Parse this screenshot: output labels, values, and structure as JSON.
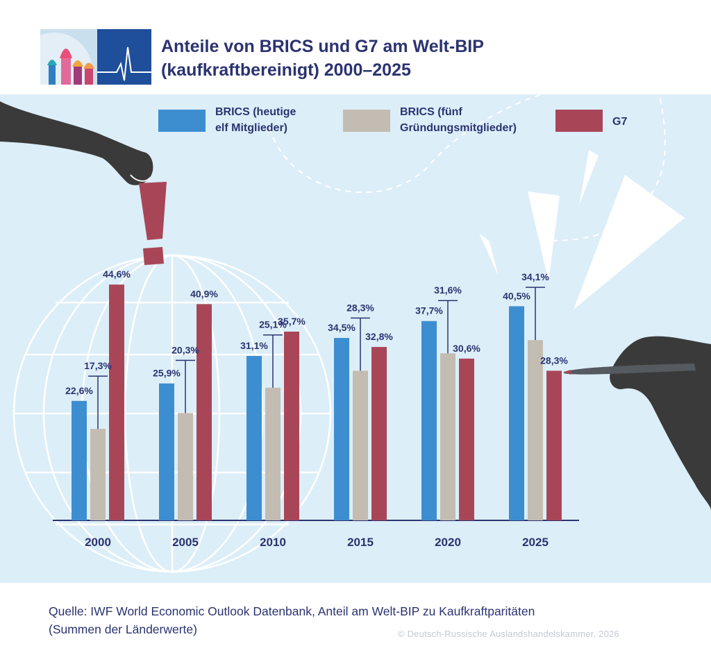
{
  "header": {
    "title_line1": "Anteile von BRICS und G7 am Welt-BIP",
    "title_line2": "(kaufkraftbereinigt) 2000–2025",
    "logo_icon": "kremlin-domes-heartbeat-logo"
  },
  "decorations": {
    "globe_icon": "wireframe-globe-icon",
    "exclamation_icon": "exclamation-mark-icon",
    "left_hand_icon": "halftone-hand-icon",
    "right_hand_icon": "halftone-hand-with-pen-icon"
  },
  "colors": {
    "brics_current": "#3d8ed0",
    "brics_founding": "#c3bcb2",
    "g7": "#a84658",
    "panel": "#dceef8",
    "text": "#2b3370"
  },
  "chart_data": {
    "type": "bar",
    "title": "Anteile von BRICS und G7 am Welt-BIP (kaufkraftbereinigt) 2000–2025",
    "categories": [
      "2000",
      "2005",
      "2010",
      "2015",
      "2020",
      "2025"
    ],
    "unit": "%",
    "series": [
      {
        "name": "BRICS (heutige elf Mitglieder)",
        "color": "#3d8ed0",
        "values": [
          22.6,
          25.9,
          31.1,
          34.5,
          37.7,
          40.5
        ],
        "labels": [
          "22,6%",
          "25,9%",
          "31,1%",
          "34,5%",
          "37,7%",
          "40,5%"
        ]
      },
      {
        "name": "BRICS (fünf Gründungsmitglieder)",
        "color": "#c3bcb2",
        "values": [
          17.3,
          20.3,
          25.1,
          28.3,
          31.6,
          34.1
        ],
        "labels": [
          "17,3%",
          "20,3%",
          "25,1%",
          "28,3%",
          "31,6%",
          "34,1%"
        ]
      },
      {
        "name": "G7",
        "color": "#a84658",
        "values": [
          44.6,
          40.9,
          35.7,
          32.8,
          30.6,
          28.3
        ],
        "labels": [
          "44,6%",
          "40,9%",
          "35,7%",
          "32,8%",
          "30,6%",
          "28,3%"
        ]
      }
    ],
    "legend_lines": [
      [
        "BRICS (heutige",
        "elf Mitglieder)"
      ],
      [
        "BRICS (fünf",
        "Gründungsmitglieder)"
      ],
      [
        "G7"
      ]
    ],
    "legend_position": "top",
    "grid": false,
    "ylim": [
      0,
      50
    ]
  },
  "source": {
    "line1": "Quelle: IWF World Economic Outlook Datenbank, Anteil am Welt-BIP zu Kaufkraftparitäten",
    "line2": "(Summen der Länderwerte)"
  },
  "copyright": "© Deutsch-Russische Auslandshandelskammer, 2026"
}
